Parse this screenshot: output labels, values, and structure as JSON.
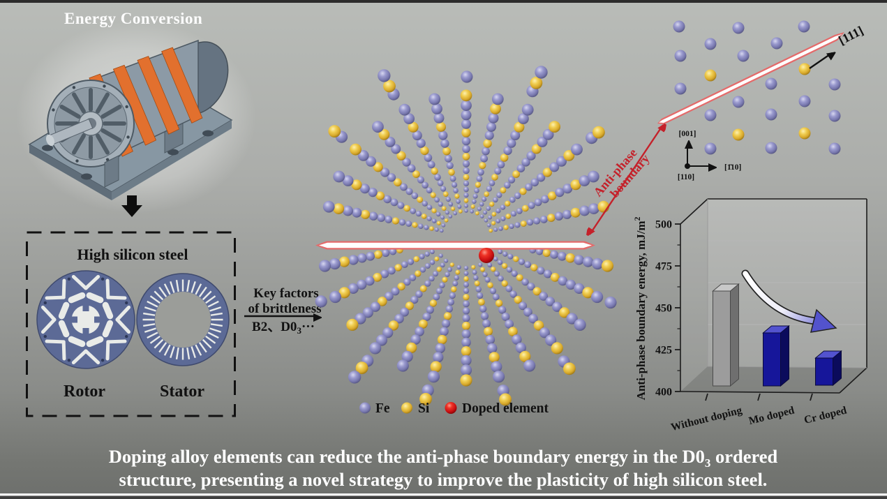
{
  "colors": {
    "background_top": "#b9bcb8",
    "background_bottom": "#6d6f6c",
    "fe_purple": "#8585bd",
    "si_yellow": "#e7bd39",
    "doped_red": "#cf1418",
    "boundary_pink": "#e46a6a",
    "accent_red": "#c4212a",
    "steel_blue": "#5c6a96",
    "motor_orange": "#e2702e"
  },
  "header": {
    "title": "Energy Conversion"
  },
  "silicon_box": {
    "title": "High silicon steel",
    "rotor_label": "Rotor",
    "stator_label": "Stator"
  },
  "key_factors": {
    "line1": "Key factors",
    "line2": "of brittleness",
    "formula_pre": "B2、D0",
    "formula_sub": "3",
    "formula_post": "···"
  },
  "legend": {
    "fe": "Fe",
    "si": "Si",
    "doped": "Doped element"
  },
  "apb": {
    "line1": "Anti-phase",
    "line2": "boundary"
  },
  "lattice": {
    "dir_111": "[111]",
    "axis_vertical": "[001]",
    "axis_horizontal": "[1̄10]",
    "axis_origin": "[110]"
  },
  "chart_data": {
    "type": "bar",
    "style": "3d",
    "categories": [
      "Without doping",
      "Mo doped",
      "Cr doped"
    ],
    "values": [
      460,
      435,
      420
    ],
    "bar_colors": [
      "#9c9c9c",
      "#16169a",
      "#16169a"
    ],
    "ylabel": "Anti-phase boundary energy, mJ/m",
    "ylabel_sup": "2",
    "ylim": [
      400,
      500
    ],
    "yticks": [
      400,
      425,
      450,
      475,
      500
    ],
    "minor_tick_step": 12.5,
    "grid": true,
    "legend_position": "none",
    "annotation": "decreasing-trend-arrow"
  },
  "caption": {
    "line1_pre": "Doping alloy elements can reduce the anti-phase boundary energy in the D0",
    "line1_sub": "3",
    "line1_post": " ordered",
    "line2": "structure, presenting a novel strategy to improve the plasticity of high silicon steel."
  }
}
